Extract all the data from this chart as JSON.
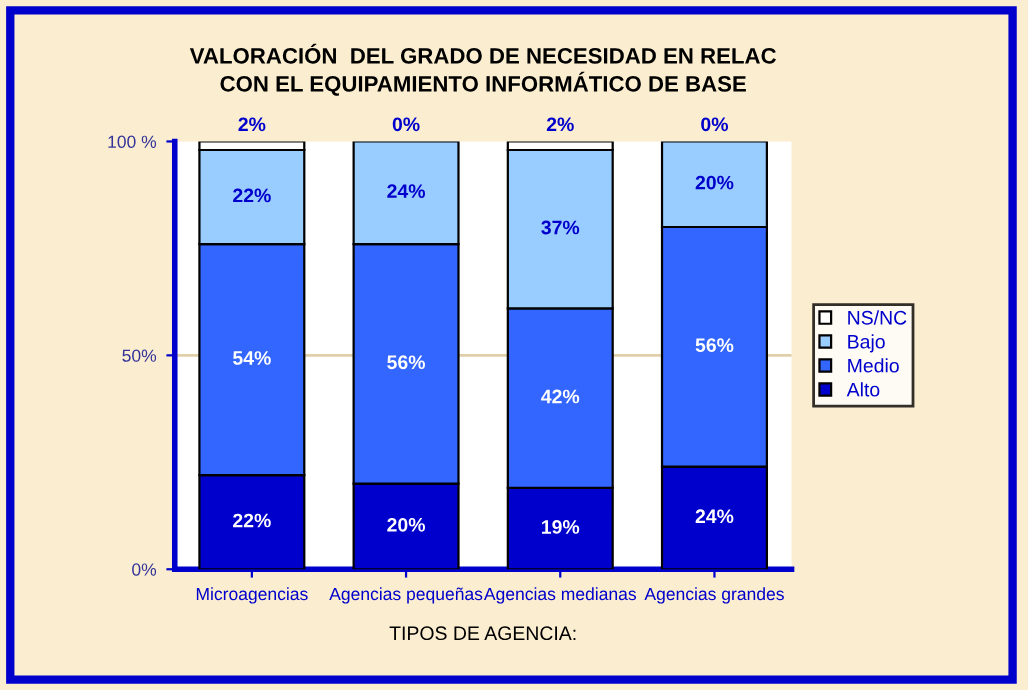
{
  "chart_data": {
    "type": "bar",
    "stacked": true,
    "title": "VALORACIÓN  DEL GRADO DE NECESIDAD EN RELAC\nCON EL EQUIPAMIENTO INFORMÁTICO DE BASE",
    "xlabel": "TIPOS DE AGENCIA:",
    "categories": [
      "Microagencias",
      "Agencias pequeñas",
      "Agencias medianas",
      "Agencias grandes"
    ],
    "series": [
      {
        "name": "Alto",
        "color": "#0000cc",
        "values": [
          22,
          20,
          19,
          24
        ],
        "value_labels": [
          "22%",
          "20%",
          "19%",
          "24%"
        ]
      },
      {
        "name": "Medio",
        "color": "#3366ff",
        "values": [
          54,
          56,
          42,
          56
        ],
        "value_labels": [
          "54%",
          "56%",
          "42%",
          "56%"
        ]
      },
      {
        "name": "Bajo",
        "color": "#99ccff",
        "values": [
          22,
          24,
          37,
          20
        ],
        "value_labels": [
          "22%",
          "24%",
          "37%",
          "20%"
        ]
      },
      {
        "name": "NS/NC",
        "color": "#ffffff",
        "values": [
          2,
          0,
          2,
          0
        ],
        "value_labels": [
          "2%",
          "0%",
          "2%",
          "0%"
        ]
      }
    ],
    "ylim": [
      0,
      100
    ],
    "yticks": [
      {
        "value": 0,
        "label": "0%"
      },
      {
        "value": 50,
        "label": "50%"
      },
      {
        "value": 100,
        "label": "100 %"
      }
    ],
    "ref_lines": [
      {
        "axis": "y",
        "value": 50,
        "color": "#e0cfa8"
      }
    ],
    "legend": "right"
  }
}
